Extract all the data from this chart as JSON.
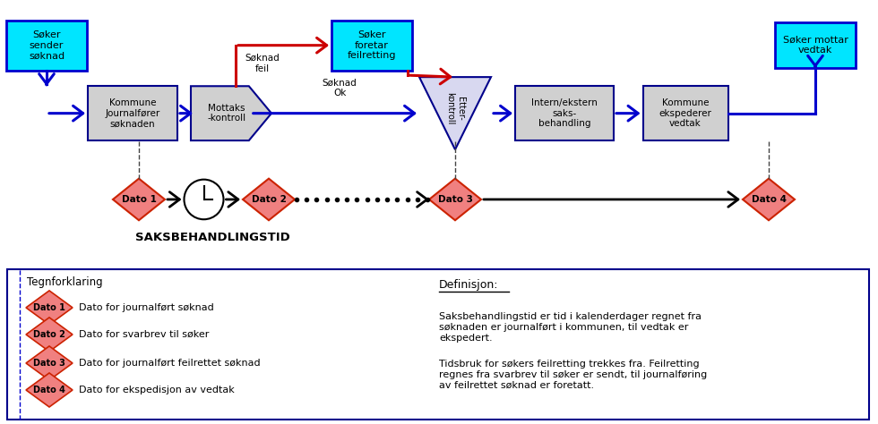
{
  "bg_color": "#ffffff",
  "cyan_fill": "#00e5ff",
  "cyan_border": "#0000cd",
  "gray_fill": "#d0d0d0",
  "gray_border": "#00008b",
  "lavender_fill": "#d8d8f0",
  "lavender_border": "#00008b",
  "diamond_fill": "#f08080",
  "diamond_border": "#cc2200",
  "blue_arrow": "#0000cd",
  "red_arrow": "#cc0000",
  "black": "#000000",
  "title": "SAKSBEHANDLINGSTID",
  "def_title": "Definisjon:",
  "def_text1": "Saksbehandlingstid er tid i kalenderdager regnet fra\nsøknaden er journalført i kommunen, til vedtak er\nekspedert.",
  "def_text2": "Tidsbruk for søkers feilretting trekkes fra. Feilretting\nregnes fra svarbrev til søker er sendt, til journalføring\nav feilrettet søknad er foretatt.",
  "legend_title": "Tegnforklaring",
  "legend_items": [
    {
      "label": "Dato 1",
      "desc": "Dato for journalført søknad"
    },
    {
      "label": "Dato 2",
      "desc": "Dato for svarbrev til søker"
    },
    {
      "label": "Dato 3",
      "desc": "Dato for journalført feilrettet søknad"
    },
    {
      "label": "Dato 4",
      "desc": "Dato for ekspedisjon av vedtak"
    }
  ]
}
